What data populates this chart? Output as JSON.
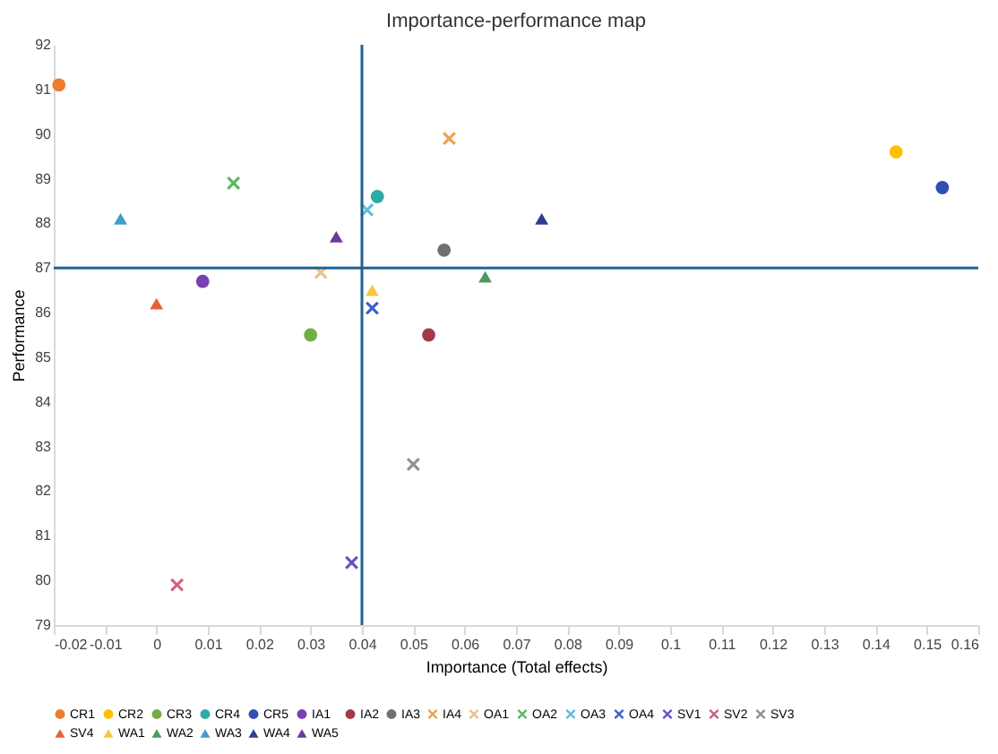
{
  "chart_data": {
    "type": "scatter",
    "title": "Importance-performance map",
    "xlabel": "Importance (Total effects)",
    "ylabel": "Performance",
    "xlim": [
      -0.02,
      0.16
    ],
    "xticks": [
      -0.02,
      -0.01,
      0,
      0.01,
      0.02,
      0.03,
      0.04,
      0.05,
      0.06,
      0.07,
      0.08,
      0.09,
      0.1,
      0.11,
      0.12,
      0.13,
      0.14,
      0.15,
      0.16
    ],
    "ylim": [
      79,
      92
    ],
    "yticks": [
      79,
      80,
      81,
      82,
      83,
      84,
      85,
      86,
      87,
      88,
      89,
      90,
      91,
      92
    ],
    "grid": false,
    "legend": "bottom",
    "ref_lines": [
      {
        "axis": "y",
        "value": 87,
        "color": "#1f6391"
      },
      {
        "axis": "x",
        "value": 0.04,
        "color": "#1f6391"
      }
    ],
    "series": [
      {
        "name": "CR1",
        "color": "#ed7d31",
        "marker": "circle",
        "x": [
          -0.019
        ],
        "values": [
          91.1
        ]
      },
      {
        "name": "CR2",
        "color": "#ffc000",
        "marker": "circle",
        "x": [
          0.144
        ],
        "values": [
          89.6
        ]
      },
      {
        "name": "CR3",
        "color": "#70ad47",
        "marker": "circle",
        "x": [
          0.03
        ],
        "values": [
          85.5
        ]
      },
      {
        "name": "CR4",
        "color": "#2eaaa8",
        "marker": "circle",
        "x": [
          0.043
        ],
        "values": [
          88.6
        ]
      },
      {
        "name": "CR5",
        "color": "#2f4fb5",
        "marker": "circle",
        "x": [
          0.153
        ],
        "values": [
          88.8
        ]
      },
      {
        "name": "IA1",
        "color": "#7a3fb0",
        "marker": "circle",
        "x": [
          0.009
        ],
        "values": [
          86.7
        ]
      },
      {
        "name": "IA2",
        "color": "#a33a4a",
        "marker": "circle",
        "x": [
          0.053
        ],
        "values": [
          85.5
        ]
      },
      {
        "name": "IA3",
        "color": "#707070",
        "marker": "circle",
        "x": [
          0.056
        ],
        "values": [
          87.4
        ]
      },
      {
        "name": "IA4",
        "color": "#f0a050",
        "marker": "cross",
        "x": [
          0.057
        ],
        "values": [
          89.9
        ]
      },
      {
        "name": "OA1",
        "color": "#e8c090",
        "marker": "cross",
        "x": [
          0.032
        ],
        "values": [
          86.9
        ]
      },
      {
        "name": "OA2",
        "color": "#5cb85c",
        "marker": "cross",
        "x": [
          0.015
        ],
        "values": [
          88.9
        ]
      },
      {
        "name": "OA3",
        "color": "#5bc0de",
        "marker": "cross",
        "x": [
          0.041
        ],
        "values": [
          88.3
        ]
      },
      {
        "name": "OA4",
        "color": "#3a5fcd",
        "marker": "cross",
        "x": [
          0.042
        ],
        "values": [
          86.1
        ]
      },
      {
        "name": "SV1",
        "color": "#6a4fc9",
        "marker": "cross",
        "x": [
          0.038
        ],
        "values": [
          80.4
        ]
      },
      {
        "name": "SV2",
        "color": "#d0607a",
        "marker": "cross",
        "x": [
          0.004
        ],
        "values": [
          79.9
        ]
      },
      {
        "name": "SV3",
        "color": "#909090",
        "marker": "cross",
        "x": [
          0.05
        ],
        "values": [
          82.6
        ]
      },
      {
        "name": "SV4",
        "color": "#e8603a",
        "marker": "triangle",
        "x": [
          0.0
        ],
        "values": [
          86.2
        ]
      },
      {
        "name": "WA1",
        "color": "#f5c842",
        "marker": "triangle",
        "x": [
          0.042
        ],
        "values": [
          86.5
        ]
      },
      {
        "name": "WA2",
        "color": "#4c9a5e",
        "marker": "triangle",
        "x": [
          0.064
        ],
        "values": [
          86.8
        ]
      },
      {
        "name": "WA3",
        "color": "#3c9fc8",
        "marker": "triangle",
        "x": [
          -0.007
        ],
        "values": [
          88.1
        ]
      },
      {
        "name": "WA4",
        "color": "#2b3f8f",
        "marker": "triangle",
        "x": [
          0.075
        ],
        "values": [
          88.1
        ]
      },
      {
        "name": "WA5",
        "color": "#6b3a9e",
        "marker": "triangle",
        "x": [
          0.035
        ],
        "values": [
          87.7
        ]
      }
    ]
  }
}
